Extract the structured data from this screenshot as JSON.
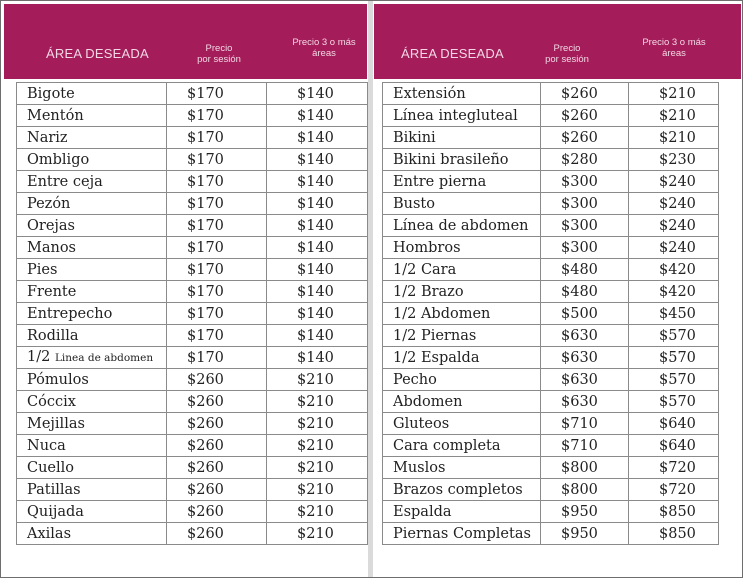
{
  "left_table": {
    "header": {
      "area": "ÁREA DESEADA",
      "price_session": [
        "Precio",
        "por sesión"
      ],
      "price_3_more": [
        "Precio 3 o más",
        "áreas"
      ]
    },
    "rows": [
      {
        "area": "Bigote",
        "price": "$170",
        "price_3": "$140"
      },
      {
        "area": "Mentón",
        "price": "$170",
        "price_3": "$140"
      },
      {
        "area": "Nariz",
        "price": "$170",
        "price_3": "$140"
      },
      {
        "area": "Ombligo",
        "price": "$170",
        "price_3": "$140"
      },
      {
        "area": "Entre ceja",
        "price": "$170",
        "price_3": "$140"
      },
      {
        "area": "Pezón",
        "price": "$170",
        "price_3": "$140"
      },
      {
        "area": "Orejas",
        "price": "$170",
        "price_3": "$140"
      },
      {
        "area": "Manos",
        "price": "$170",
        "price_3": "$140"
      },
      {
        "area": "Pies",
        "price": "$170",
        "price_3": "$140"
      },
      {
        "area": "Frente",
        "price": "$170",
        "price_3": "$140"
      },
      {
        "area": "Entrepecho",
        "price": "$170",
        "price_3": "$140"
      },
      {
        "area": "Rodilla",
        "price": "$170",
        "price_3": "$140"
      },
      {
        "area": "1/2",
        "area_small": "Linea de abdomen",
        "price": "$170",
        "price_3": "$140"
      },
      {
        "area": "Pómulos",
        "price": "$260",
        "price_3": "$210"
      },
      {
        "area": "Cóccix",
        "price": "$260",
        "price_3": "$210"
      },
      {
        "area": "Mejillas",
        "price": "$260",
        "price_3": "$210"
      },
      {
        "area": "Nuca",
        "price": "$260",
        "price_3": "$210"
      },
      {
        "area": "Cuello",
        "price": "$260",
        "price_3": "$210"
      },
      {
        "area": "Patillas",
        "price": "$260",
        "price_3": "$210"
      },
      {
        "area": "Quijada",
        "price": "$260",
        "price_3": "$210"
      },
      {
        "area": "Axilas",
        "price": "$260",
        "price_3": "$210"
      }
    ]
  },
  "right_table": {
    "header": {
      "area": "ÁREA DESEADA",
      "price_session": [
        "Precio",
        "por sesión"
      ],
      "price_3_more": [
        "Precio 3 o más",
        "áreas"
      ]
    },
    "rows": [
      {
        "area": "Extensión",
        "price": "$260",
        "price_3": "$210"
      },
      {
        "area": "Línea integluteal",
        "price": "$260",
        "price_3": "$210"
      },
      {
        "area": "Bikini",
        "price": "$260",
        "price_3": "$210"
      },
      {
        "area": "Bikini brasileño",
        "price": "$280",
        "price_3": "$230"
      },
      {
        "area": "Entre pierna",
        "price": "$300",
        "price_3": "$240"
      },
      {
        "area": "Busto",
        "price": "$300",
        "price_3": "$240"
      },
      {
        "area": "Línea de abdomen",
        "price": "$300",
        "price_3": "$240"
      },
      {
        "area": "Hombros",
        "price": "$300",
        "price_3": "$240"
      },
      {
        "area": "1/2 Cara",
        "price": "$480",
        "price_3": "$420"
      },
      {
        "area": "1/2 Brazo",
        "price": "$480",
        "price_3": "$420"
      },
      {
        "area": "1/2 Abdomen",
        "price": "$500",
        "price_3": "$450"
      },
      {
        "area": "1/2 Piernas",
        "price": "$630",
        "price_3": "$570"
      },
      {
        "area": "1/2 Espalda",
        "price": "$630",
        "price_3": "$570"
      },
      {
        "area": "Pecho",
        "price": "$630",
        "price_3": "$570"
      },
      {
        "area": "Abdomen",
        "price": "$630",
        "price_3": "$570"
      },
      {
        "area": "Gluteos",
        "price": "$710",
        "price_3": "$640"
      },
      {
        "area": "Cara completa",
        "price": "$710",
        "price_3": "$640"
      },
      {
        "area": "Muslos",
        "price": "$800",
        "price_3": "$720"
      },
      {
        "area": "Brazos completos",
        "price": "$800",
        "price_3": "$720"
      },
      {
        "area": "Espalda",
        "price": "$950",
        "price_3": "$850"
      },
      {
        "area": "Piernas Completas",
        "price": "$950",
        "price_3": "$850"
      }
    ]
  },
  "colors": {
    "header_bg": "#a41d5a",
    "header_text": "#f3d7e4",
    "grid": "#8a8a8a"
  }
}
